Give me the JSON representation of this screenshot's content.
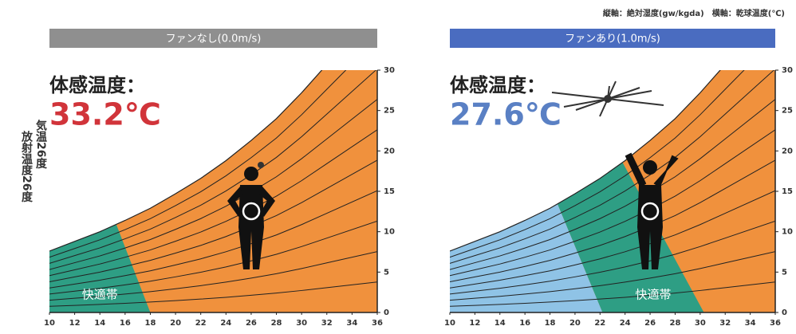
{
  "note": "縦軸：絶対湿度(gw/kgda)　横軸：乾球温度(℃)",
  "side_label": [
    "気温26度",
    "放射温度26度"
  ],
  "chart_data": [
    {
      "type": "psychrometric",
      "title": "ファンなし(0.0m/s)",
      "title_color": "#8f8f8f",
      "annotation": "体感温度：",
      "felt_temperature": "33.2℃",
      "felt_color": "#d1343a",
      "x": [
        10,
        12,
        14,
        16,
        18,
        20,
        22,
        24,
        26,
        28,
        30,
        32
      ],
      "values": [
        7.6,
        8.8,
        10.0,
        11.4,
        12.9,
        14.7,
        16.6,
        18.8,
        21.3,
        24.0,
        27.2,
        30.7
      ],
      "color": "#f0913d",
      "zones": [
        {
          "color": "#2e9e84",
          "top_x": 15.3,
          "bottom_x": 18,
          "label": "快適帯"
        }
      ],
      "xlim": [
        10,
        36
      ],
      "ylim": [
        0,
        30
      ],
      "xticks": [
        10,
        12,
        14,
        16,
        18,
        20,
        22,
        24,
        26,
        28,
        30,
        32,
        34,
        36
      ],
      "yticks": [
        0,
        5,
        10,
        15,
        20,
        25,
        30
      ]
    },
    {
      "type": "psychrometric",
      "title": "ファンあり(1.0m/s)",
      "title_color": "#4a6cc0",
      "annotation": "体感温度：",
      "felt_temperature": "27.6℃",
      "felt_color": "#5a80c4",
      "x": [
        10,
        12,
        14,
        16,
        18,
        20,
        22,
        24,
        26,
        28,
        30,
        32
      ],
      "values": [
        7.6,
        8.8,
        10.0,
        11.4,
        12.9,
        14.7,
        16.6,
        18.8,
        21.3,
        24.0,
        27.2,
        30.7
      ],
      "color": "#f0913d",
      "zones": [
        {
          "color": "#8fc3e6",
          "top_x": 18.6,
          "bottom_x": 22.2
        },
        {
          "color": "#2e9e84",
          "top_x": 23.8,
          "bottom_x": 30.3,
          "label": "快適帯"
        }
      ],
      "xlim": [
        10,
        36
      ],
      "ylim": [
        0,
        30
      ],
      "xticks": [
        10,
        12,
        14,
        16,
        18,
        20,
        22,
        24,
        26,
        28,
        30,
        32,
        34,
        36
      ],
      "yticks": [
        0,
        5,
        10,
        15,
        20,
        25,
        30
      ]
    }
  ]
}
